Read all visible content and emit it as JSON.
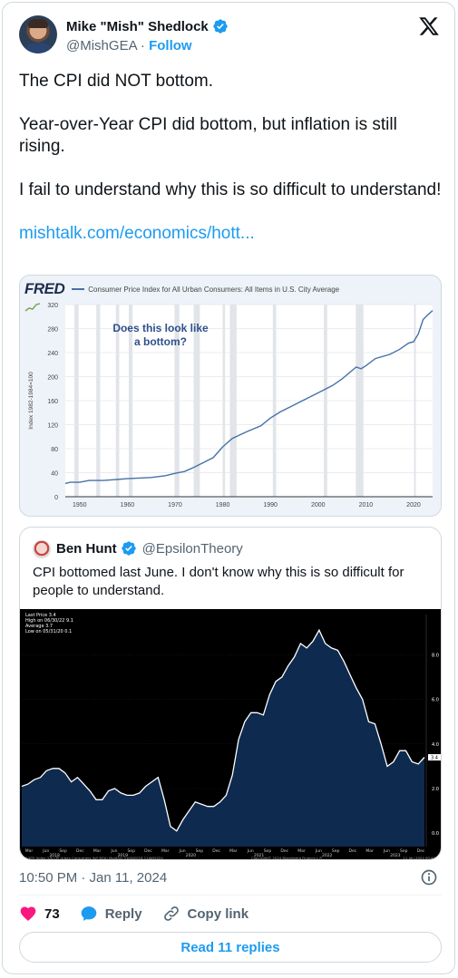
{
  "tweet": {
    "author_name": "Mike \"Mish\" Shedlock",
    "handle": "@MishGEA",
    "separator": "·",
    "follow_label": "Follow",
    "paragraphs": [
      "The CPI did NOT bottom.",
      "Year-over-Year CPI did bottom, but inflation is still rising.",
      "I fail to understand why this is so difficult to understand!"
    ],
    "link_text": "mishtalk.com/economics/hott...",
    "timestamp": "10:50 PM · Jan 11, 2024",
    "likes_count": "73",
    "reply_label": "Reply",
    "copy_link_label": "Copy link",
    "read_replies_label": "Read 11 replies"
  },
  "quoted": {
    "author_name": "Ben Hunt",
    "handle": "@EpsilonTheory",
    "text": "CPI bottomed last June. I don't know why this is so difficult for people to understand."
  },
  "colors": {
    "accent": "#1d9bf0",
    "like": "#f91880",
    "fred_line": "#4572a7",
    "recession": "#e1e4e9",
    "bbg_fill": "#0e2a4f"
  },
  "icons": {
    "verified": "verified-badge-icon",
    "x_logo": "x-logo-icon",
    "heart": "heart-icon",
    "reply": "reply-bubble-icon",
    "link": "link-icon",
    "info": "info-icon"
  },
  "chart_data": [
    {
      "type": "line",
      "logo": "FRED",
      "title": "Consumer Price Index for All Urban Consumers: All Items in U.S. City Average",
      "ylabel": "Index 1982-1984=100",
      "annotation": "Does this look like a bottom?",
      "xlim": [
        1947,
        2024
      ],
      "ylim": [
        0,
        320
      ],
      "x_ticks": [
        "1950",
        "1960",
        "1970",
        "1980",
        "1990",
        "2000",
        "2010",
        "2020"
      ],
      "y_ticks": [
        "0",
        "40",
        "80",
        "120",
        "160",
        "200",
        "240",
        "280",
        "320"
      ],
      "recessions": [
        [
          1948.9,
          1949.8
        ],
        [
          1953.5,
          1954.3
        ],
        [
          1957.6,
          1958.3
        ],
        [
          1960.3,
          1961.1
        ],
        [
          1969.9,
          1970.9
        ],
        [
          1973.9,
          1975.2
        ],
        [
          1980.0,
          1980.5
        ],
        [
          1981.5,
          1982.9
        ],
        [
          1990.5,
          1991.2
        ],
        [
          2001.2,
          2001.9
        ],
        [
          2007.9,
          2009.5
        ],
        [
          2020.1,
          2020.4
        ]
      ],
      "series": [
        {
          "x": [
            1947,
            1948,
            1950,
            1952,
            1955,
            1960,
            1965,
            1968,
            1970,
            1972,
            1974,
            1976,
            1978,
            1980,
            1982,
            1985,
            1988,
            1990,
            1992,
            1995,
            2000,
            2003,
            2005,
            2008,
            2009,
            2010,
            2012,
            2015,
            2017,
            2019,
            2020,
            2021,
            2022,
            2023,
            2024
          ],
          "y": [
            22,
            24,
            24,
            27,
            27,
            30,
            32,
            35,
            39,
            42,
            49,
            57,
            65,
            83,
            97,
            108,
            118,
            131,
            141,
            153,
            173,
            185,
            196,
            216,
            213,
            218,
            230,
            237,
            245,
            256,
            258,
            271,
            295,
            303,
            310
          ]
        }
      ]
    },
    {
      "type": "area",
      "legend": [
        "Last Price 3.4",
        "High on 06/30/22 9.1",
        "Average 3.7",
        "Low on 05/31/20 0.1"
      ],
      "footer_left": "CPI YOY Index (US CPI Urban Consumers YoY NSA) Monthly 31JAN2018-11JAN2024",
      "footer_mid": "Copyright© 2024 Bloomberg Finance L.P.",
      "footer_right": "11-Jan-2024 00:47:22",
      "y_ticks": [
        "0.0",
        "2.0",
        "4.0",
        "6.0",
        "8.0"
      ],
      "ylim": [
        -0.6,
        9.8
      ],
      "x_ticks": [
        "Mar",
        "Jun",
        "Sep",
        "Dec",
        "Mar",
        "Jun",
        "Sep",
        "Dec",
        "Mar",
        "Jun",
        "Sep",
        "Dec",
        "Mar",
        "Jun",
        "Sep",
        "Dec",
        "Mar",
        "Jun",
        "Sep",
        "Dec",
        "Mar",
        "Jun",
        "Sep",
        "Dec"
      ],
      "year_labels": [
        "2018",
        "2019",
        "2020",
        "2021",
        "2022",
        "2023"
      ],
      "last_price_label": "3.4",
      "values": [
        2.1,
        2.2,
        2.4,
        2.5,
        2.8,
        2.9,
        2.9,
        2.7,
        2.3,
        2.5,
        2.2,
        1.9,
        1.5,
        1.5,
        1.9,
        2.0,
        1.8,
        1.7,
        1.7,
        1.8,
        2.1,
        2.3,
        2.5,
        1.5,
        0.3,
        0.1,
        0.6,
        1.0,
        1.4,
        1.3,
        1.2,
        1.2,
        1.4,
        1.7,
        2.6,
        4.2,
        5.0,
        5.4,
        5.4,
        5.3,
        6.2,
        6.8,
        7.0,
        7.5,
        7.9,
        8.5,
        8.3,
        8.6,
        9.1,
        8.5,
        8.3,
        8.2,
        7.7,
        7.1,
        6.5,
        6.0,
        5.0,
        4.9,
        4.0,
        3.0,
        3.2,
        3.7,
        3.7,
        3.2,
        3.1,
        3.4
      ]
    }
  ]
}
